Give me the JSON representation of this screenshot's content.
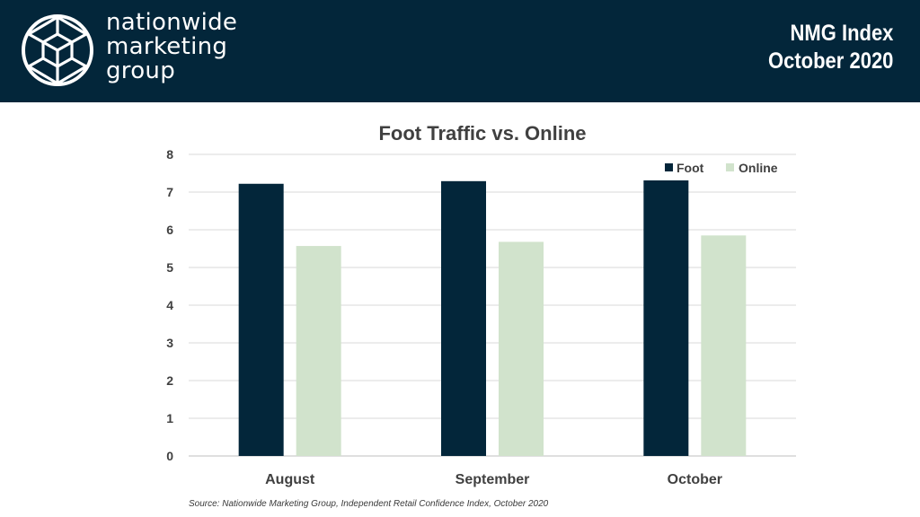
{
  "header": {
    "brand_lines": [
      "nationwide",
      "marketing",
      "group"
    ],
    "index_title": "NMG Index",
    "index_period": "October 2020"
  },
  "colors": {
    "header_bg": "#03263a",
    "foot": "#03263a",
    "online": "#d1e3cc"
  },
  "icons": {
    "logo": "geodesic-sphere-logo-icon"
  },
  "chart_data": {
    "type": "bar",
    "title": "Foot Traffic vs. Online",
    "categories": [
      "August",
      "September",
      "October"
    ],
    "series": [
      {
        "name": "Foot",
        "values": [
          7.22,
          7.29,
          7.31
        ]
      },
      {
        "name": "Online",
        "values": [
          5.57,
          5.68,
          5.85
        ]
      }
    ],
    "ylim": [
      0,
      8
    ],
    "yticks": [
      "0",
      "1",
      "2",
      "3",
      "4",
      "5",
      "6",
      "7",
      "8"
    ],
    "grid": true,
    "legend": "top-right",
    "xlabel": "",
    "ylabel": ""
  },
  "source": "Source: Nationwide Marketing Group, Independent Retail Confidence Index, October 2020"
}
